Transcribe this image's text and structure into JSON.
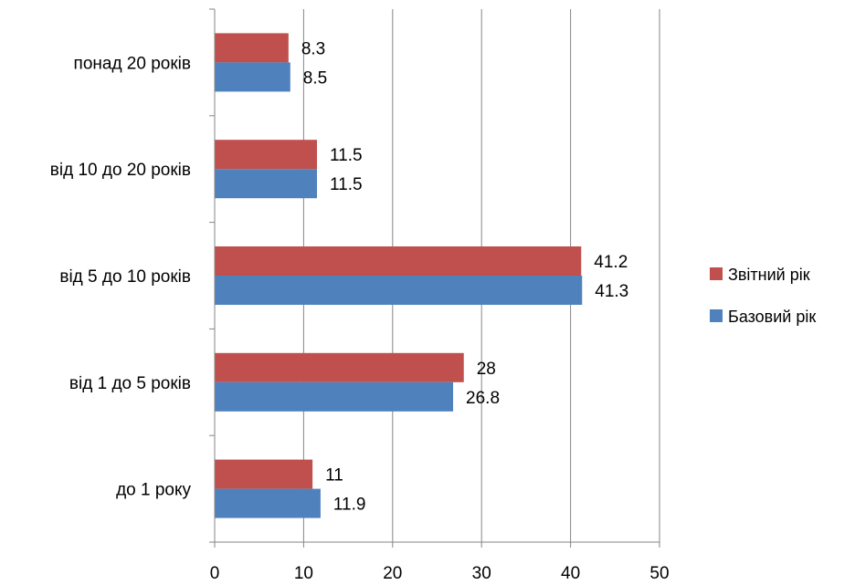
{
  "chart_data": {
    "type": "bar",
    "orientation": "horizontal",
    "categories": [
      "до 1 року",
      "від 1 до 5 років",
      "від 5 до 10 років",
      "від 10 до 20 років",
      "понад 20 років"
    ],
    "series": [
      {
        "name": "Звітний рік",
        "values": [
          11,
          28,
          41.2,
          11.5,
          8.3
        ],
        "color": "#c0504d"
      },
      {
        "name": "Базовий рік",
        "values": [
          11.9,
          26.8,
          41.3,
          11.5,
          8.5
        ],
        "color": "#4f81bd"
      }
    ],
    "x_ticks": [
      "0",
      "10",
      "20",
      "30",
      "40",
      "50"
    ],
    "xlim": [
      0,
      50
    ],
    "title": "",
    "xlabel": "",
    "ylabel": "",
    "grid": "vertical",
    "legend_position": "right"
  }
}
